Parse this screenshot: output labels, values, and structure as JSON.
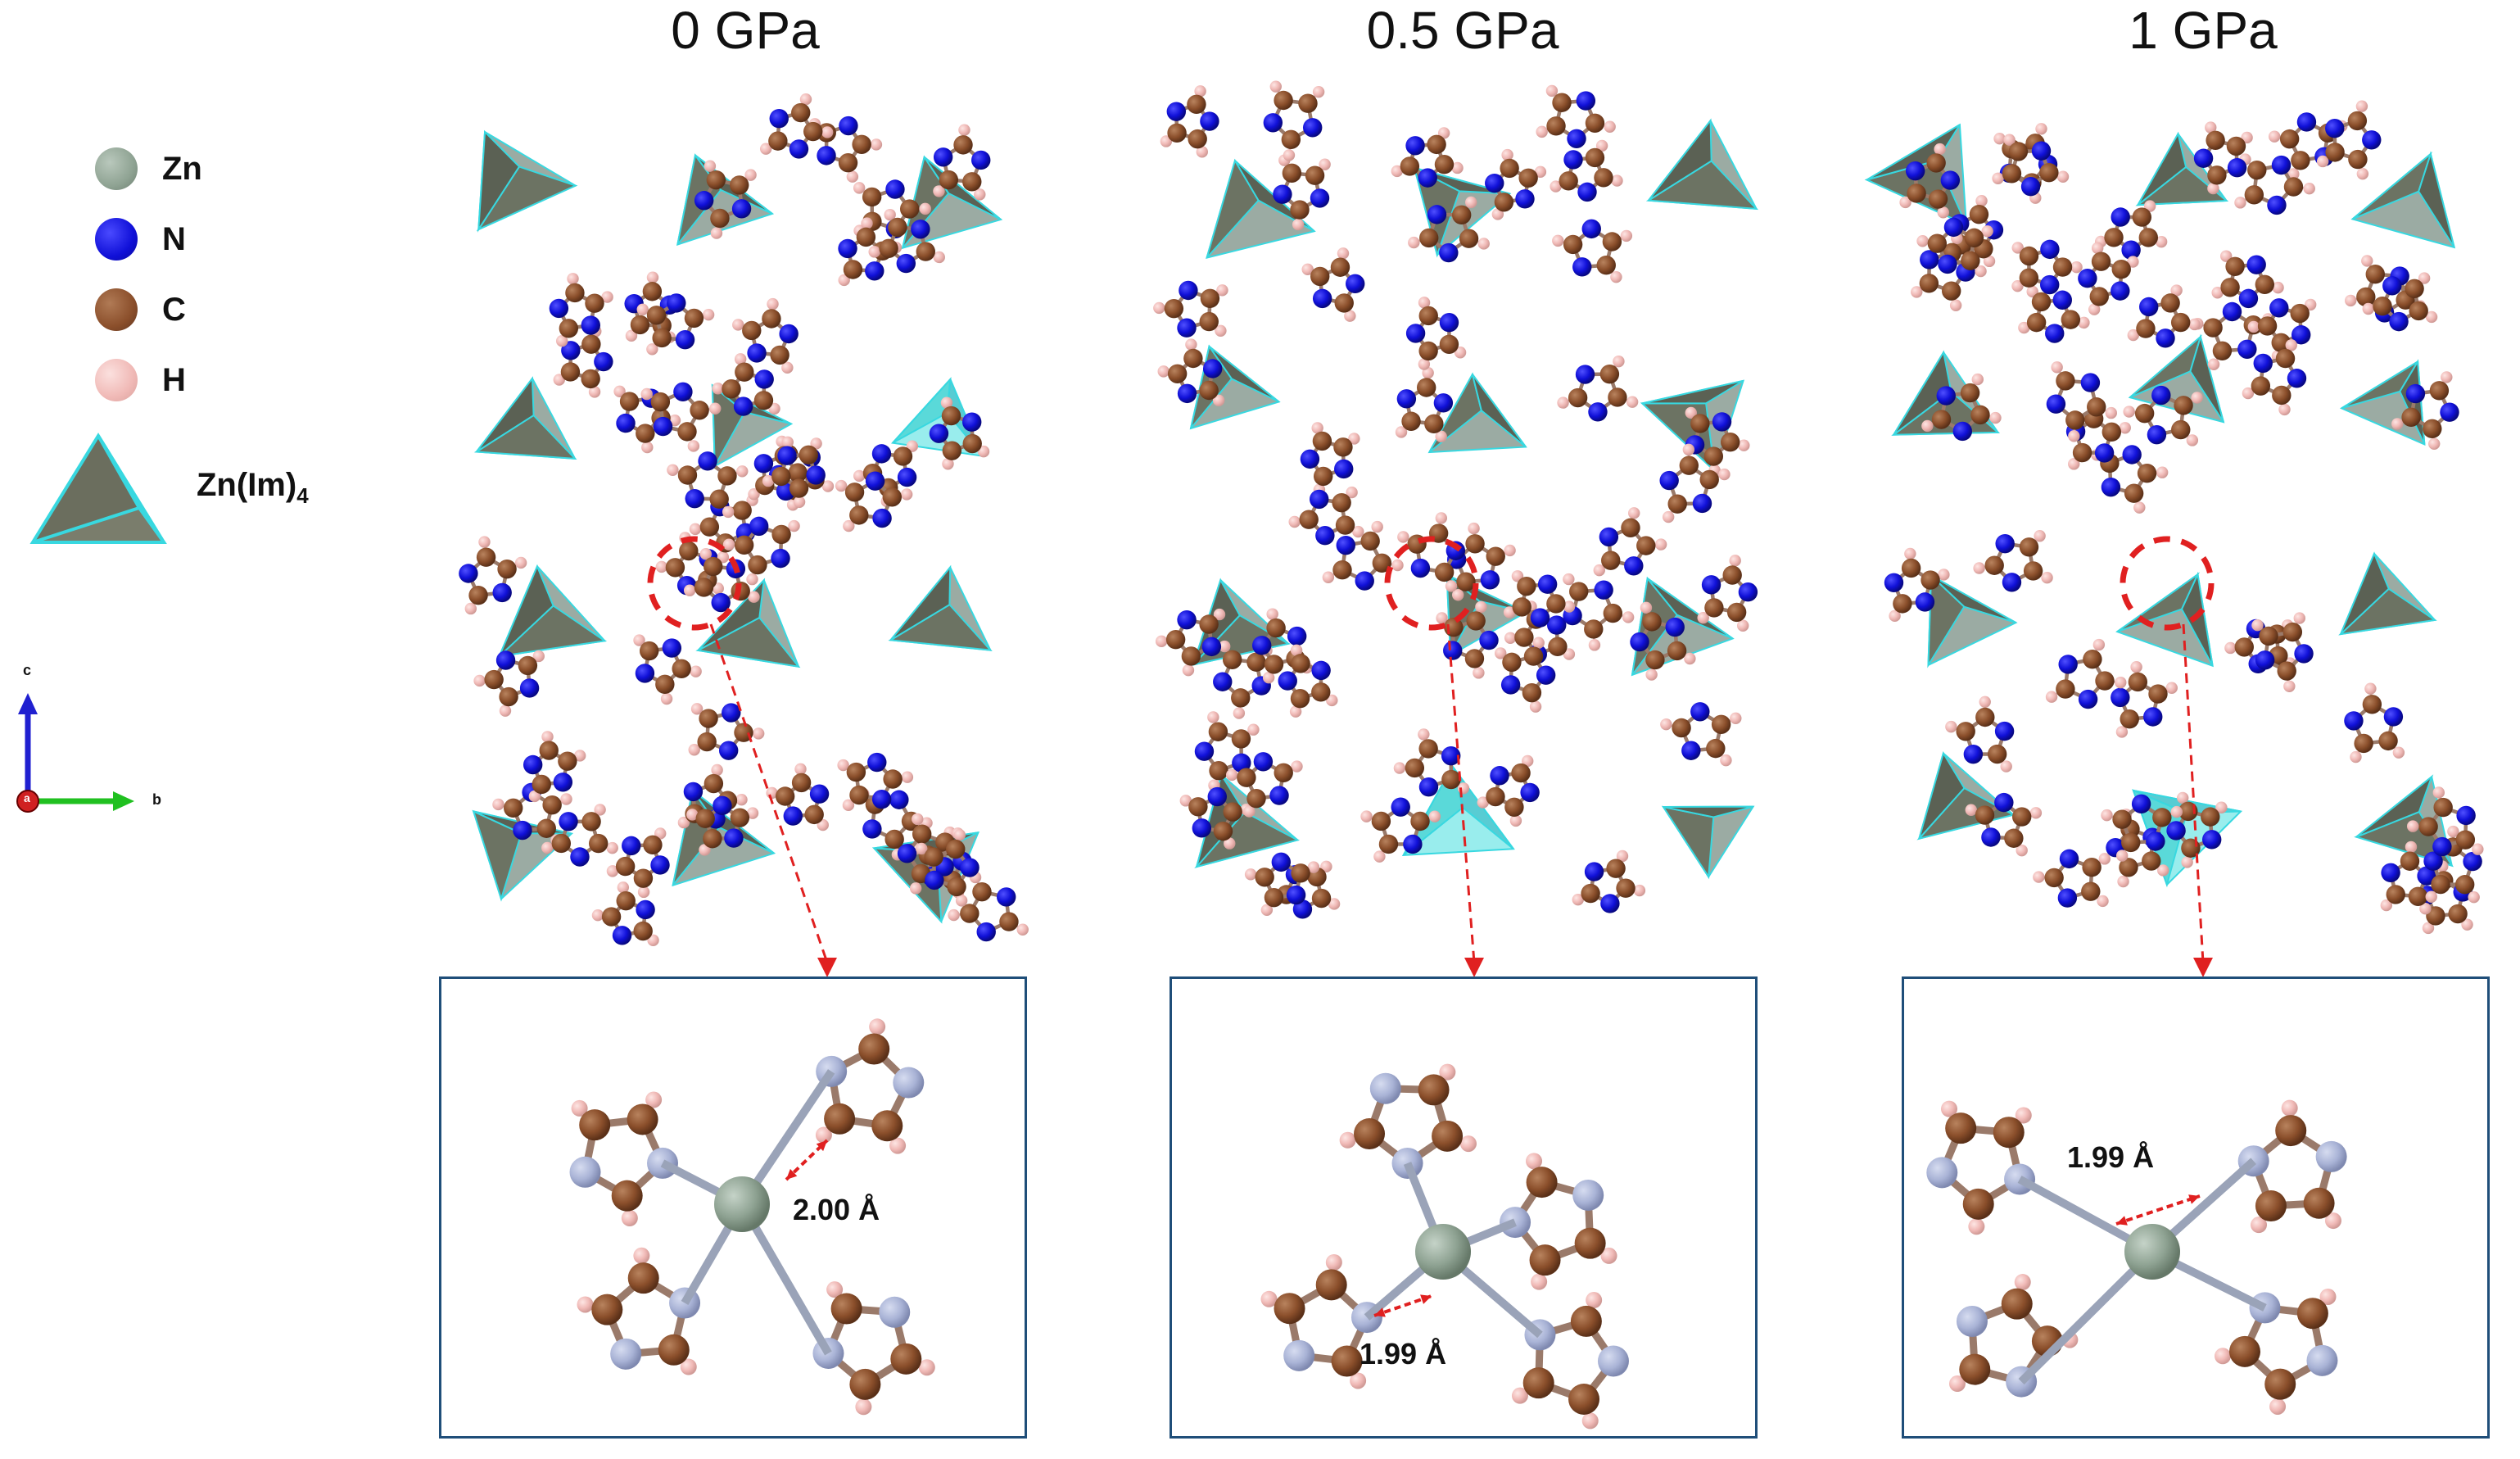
{
  "panels": [
    {
      "title": "0 GPa",
      "bond_length": "2.00 Å"
    },
    {
      "title": "0.5 GPa",
      "bond_length": "1.99 Å"
    },
    {
      "title": "1 GPa",
      "bond_length": "1.99 Å"
    }
  ],
  "legend": {
    "items": [
      {
        "label": "Zn",
        "color": "#8fa393"
      },
      {
        "label": "N",
        "color": "#1010d8"
      },
      {
        "label": "C",
        "color": "#8b4f2b"
      },
      {
        "label": "H",
        "color": "#f0b9b6"
      }
    ],
    "polyhedron_label": "Zn(Im)",
    "polyhedron_subscript": "4"
  },
  "axes": {
    "c": "c",
    "a": "a",
    "b": "b"
  },
  "colors": {
    "zn": "#8fa393",
    "n": "#1010d8",
    "c": "#8b4f2b",
    "h": "#f0b9b6",
    "n_inset": "#a9b3d6",
    "polyhedron": "#6b6e5e",
    "polyhedron_edge": "#38d8e0",
    "highlight": "#e02020",
    "inset_border": "#1f4e79"
  }
}
